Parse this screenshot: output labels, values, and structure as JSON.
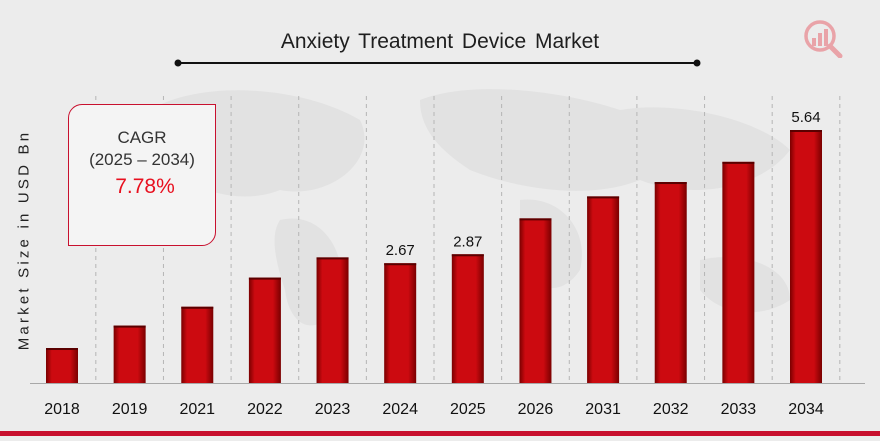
{
  "colors": {
    "bar": "#cc0a10",
    "bar_dark": "#7a0000",
    "accent": "#c8102e",
    "cagr_value": "#e8101f"
  },
  "logo": {
    "icon": "bar-chart-magnifier-logo"
  },
  "cagr": {
    "label": "CAGR",
    "range": "(2025 – 2034)",
    "value": "7.78%"
  },
  "chart_data": {
    "type": "bar",
    "title": "Anxiety Treatment Device Market",
    "xlabel": "",
    "ylabel": "Market Size in USD Bn",
    "categories": [
      "2018",
      "2019",
      "2021",
      "2022",
      "2023",
      "2024",
      "2025",
      "2026",
      "2031",
      "2032",
      "2033",
      "2034"
    ],
    "values": [
      0.78,
      1.28,
      1.7,
      2.35,
      2.8,
      2.67,
      2.87,
      3.67,
      4.16,
      4.48,
      4.93,
      5.64
    ],
    "data_labels": [
      {
        "category": "2024",
        "text": "2.67"
      },
      {
        "category": "2025",
        "text": "2.87"
      },
      {
        "category": "2034",
        "text": "5.64"
      }
    ],
    "ylim": [
      0,
      5.64
    ],
    "grid": "vertical",
    "legend": "none"
  }
}
